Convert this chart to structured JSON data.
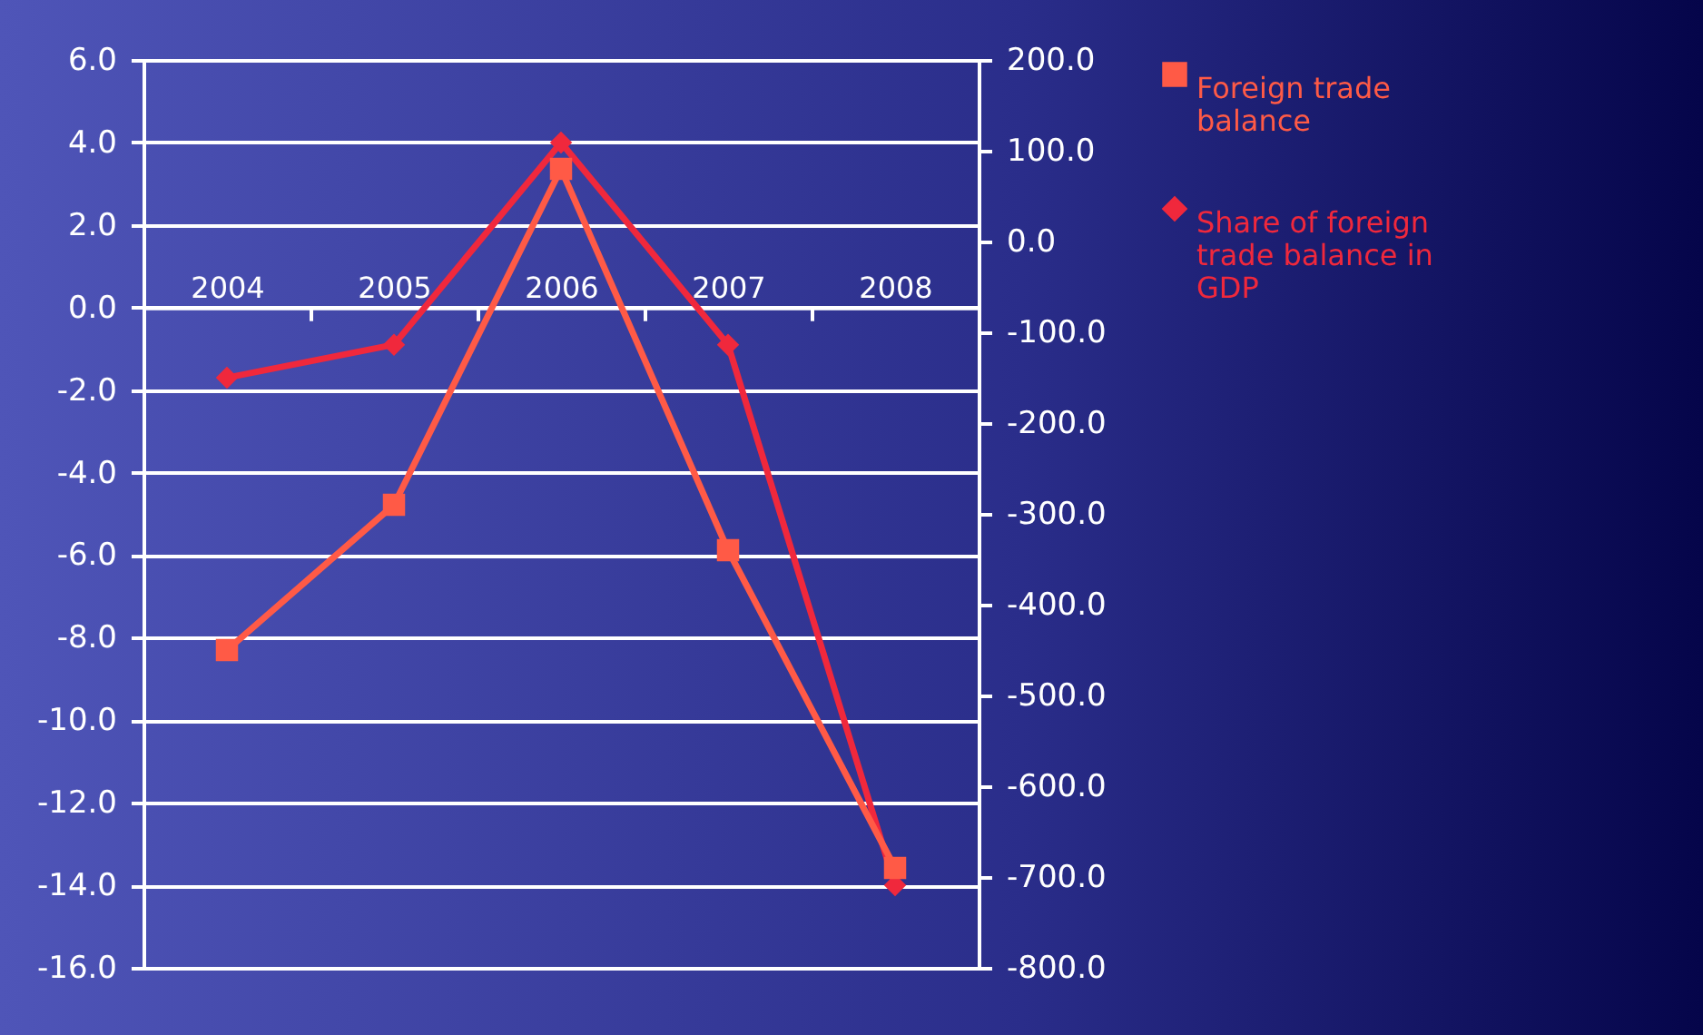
{
  "chart_data": {
    "type": "line",
    "categories": [
      "2004",
      "2005",
      "2006",
      "2007",
      "2008"
    ],
    "series": [
      {
        "name": "Foreign trade balance",
        "color": "#ff5a46",
        "marker": "square",
        "axis": "y2",
        "values": [
          -450,
          -290,
          80,
          -340,
          -690
        ]
      },
      {
        "name": "Share of foreign trade balance in GDP",
        "color": "#f0283c",
        "marker": "diamond",
        "values": [
          -1.7,
          -0.9,
          4.0,
          -0.9,
          -14.0
        ]
      }
    ],
    "ylim": [
      -16,
      6
    ],
    "yticks": [
      {
        "value": -16,
        "label": "-16.0"
      },
      {
        "value": -14,
        "label": "-14.0"
      },
      {
        "value": -12,
        "label": "-12.0"
      },
      {
        "value": -10,
        "label": "-10.0"
      },
      {
        "value": -8,
        "label": "-8.0"
      },
      {
        "value": -6,
        "label": "-6.0"
      },
      {
        "value": -4,
        "label": "-4.0"
      },
      {
        "value": -2,
        "label": "-2.0"
      },
      {
        "value": 0,
        "label": "0.0"
      },
      {
        "value": 2,
        "label": "2.0"
      },
      {
        "value": 4,
        "label": "4.0"
      },
      {
        "value": 6,
        "label": "6.0"
      }
    ],
    "y2lim": [
      -800,
      200
    ],
    "y2ticks": [
      {
        "value": -800,
        "label": "-800.0"
      },
      {
        "value": -700,
        "label": "-700.0"
      },
      {
        "value": -600,
        "label": "-600.0"
      },
      {
        "value": -500,
        "label": "-500.0"
      },
      {
        "value": -400,
        "label": "-400.0"
      },
      {
        "value": -300,
        "label": "-300.0"
      },
      {
        "value": -200,
        "label": "-200.0"
      },
      {
        "value": -100,
        "label": "-100.0"
      },
      {
        "value": 0,
        "label": "0.0"
      },
      {
        "value": 100,
        "label": "100.0"
      },
      {
        "value": 200,
        "label": "200.0"
      }
    ],
    "grid": "y",
    "legend": "right"
  }
}
